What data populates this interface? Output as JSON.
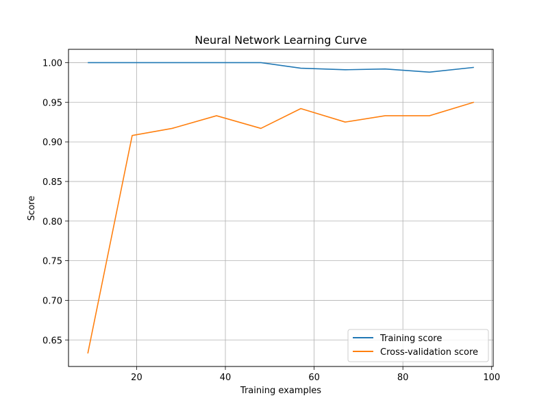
{
  "chart_data": {
    "type": "line",
    "title": "Neural Network Learning Curve",
    "xlabel": "Training examples",
    "ylabel": "Score",
    "xlim": [
      4.65,
      100.35
    ],
    "ylim": [
      0.6165,
      1.0168
    ],
    "xticks": [
      20,
      40,
      60,
      80,
      100
    ],
    "yticks": [
      0.65,
      0.7,
      0.75,
      0.8,
      0.85,
      0.9,
      0.95,
      1.0
    ],
    "grid": true,
    "legend_position": "lower-right",
    "x": [
      9,
      19,
      28,
      38,
      48,
      57,
      67,
      76,
      86,
      96
    ],
    "series": [
      {
        "name": "Training score",
        "color": "#1f77b4",
        "values": [
          1.0,
          1.0,
          1.0,
          1.0,
          1.0,
          0.993,
          0.991,
          0.992,
          0.988,
          0.994
        ]
      },
      {
        "name": "Cross-validation score",
        "color": "#ff7f0e",
        "values": [
          0.633,
          0.908,
          0.917,
          0.933,
          0.917,
          0.942,
          0.925,
          0.933,
          0.933,
          0.95
        ]
      }
    ]
  }
}
